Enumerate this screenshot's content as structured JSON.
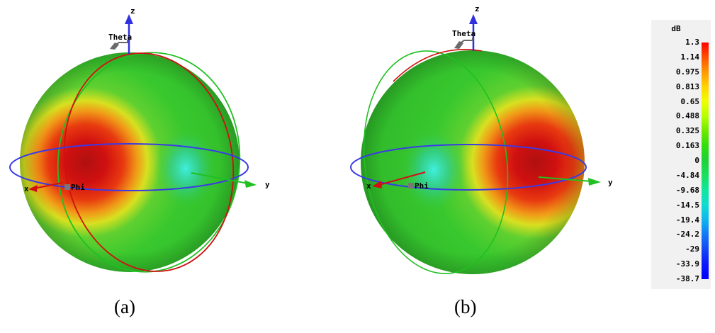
{
  "panels": [
    {
      "caption": "(a)",
      "axis_labels": {
        "z": "z",
        "y": "y",
        "x": "x",
        "theta": "Theta",
        "phi": "Phi"
      }
    },
    {
      "caption": "(b)",
      "axis_labels": {
        "z": "z",
        "y": "y",
        "x": "x",
        "theta": "Theta",
        "phi": "Phi"
      }
    }
  ],
  "legend": {
    "unit": "dB",
    "ticks": [
      "1.3",
      "1.14",
      "0.975",
      "0.813",
      "0.65",
      "0.488",
      "0.325",
      "0.163",
      "0",
      "-4.84",
      "-9.68",
      "-14.5",
      "-19.4",
      "-24.2",
      "-29",
      "-33.9",
      "-38.7"
    ],
    "colors": [
      "#ff0000",
      "#ff5000",
      "#ff9900",
      "#ffd500",
      "#f0ff00",
      "#b4ff00",
      "#6ee800",
      "#30dd10",
      "#1ed238",
      "#18e060",
      "#12e6a0",
      "#10dcd2",
      "#10b4ee",
      "#1478f4",
      "#1446f6",
      "#0a18fa",
      "#0000ff"
    ]
  },
  "colors": {
    "red_band": "#e01010",
    "green_body": "#38d030",
    "cyan_null": "#30e0c8",
    "axis_blue": "#3030e0",
    "phi_ring": "#3a3ae6",
    "y_arrow": "#20c020"
  }
}
